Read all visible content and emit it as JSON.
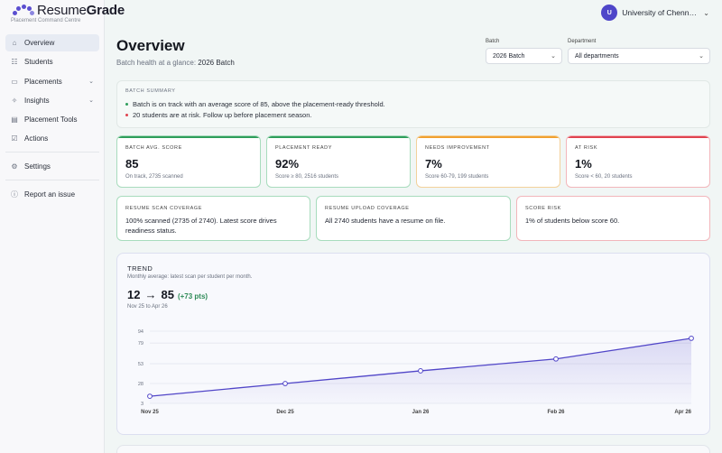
{
  "brand": {
    "name_part1": "Resume",
    "name_part2": "Grade",
    "subtitle": "Placement Command Centre"
  },
  "nav": {
    "items": [
      {
        "label": "Overview",
        "icon": "home-icon",
        "active": true
      },
      {
        "label": "Students",
        "icon": "users-icon"
      },
      {
        "label": "Placements",
        "icon": "briefcase-icon",
        "expandable": true
      },
      {
        "label": "Insights",
        "icon": "bulb-icon",
        "expandable": true
      },
      {
        "label": "Placement Tools",
        "icon": "clipboard-icon"
      },
      {
        "label": "Actions",
        "icon": "checkbox-icon"
      }
    ],
    "settings": "Settings",
    "report": "Report an issue"
  },
  "user": {
    "initial": "U",
    "org": "University of Chennai..."
  },
  "header": {
    "title": "Overview",
    "subtitle_prefix": "Batch health at a glance: ",
    "subtitle_batch": "2026 Batch"
  },
  "filters": {
    "batch_label": "Batch",
    "batch_value": "2026 Batch",
    "dept_label": "Department",
    "dept_value": "All departments"
  },
  "summary": {
    "label": "BATCH SUMMARY",
    "lines": [
      {
        "text": "Batch is on track with an average score of 85, above the placement-ready threshold.",
        "color": "#2e9e5b"
      },
      {
        "text": "20 students are at risk. Follow up before placement season.",
        "color": "#e0434f"
      }
    ]
  },
  "kpis": [
    {
      "title": "BATCH AVG. SCORE",
      "value": "85",
      "sub": "On track, 2735 scanned",
      "accent": "#2e9e5b"
    },
    {
      "title": "PLACEMENT READY",
      "value": "92%",
      "sub": "Score ≥ 80, 2516 students",
      "accent": "#2e9e5b"
    },
    {
      "title": "NEEDS IMPROVEMENT",
      "value": "7%",
      "sub": "Score 60-79, 199 students",
      "accent": "#f0a030"
    },
    {
      "title": "AT RISK",
      "value": "1%",
      "sub": "Score < 60, 20 students",
      "accent": "#e0434f"
    }
  ],
  "coverage": [
    {
      "title": "RESUME SCAN COVERAGE",
      "text": "100% scanned (2735 of 2740). Latest score drives readiness status.",
      "accent": "#9fd8b4"
    },
    {
      "title": "RESUME UPLOAD COVERAGE",
      "text": "All 2740 students have a resume on file.",
      "accent": "#9fd8b4"
    },
    {
      "title": "SCORE RISK",
      "text": "1% of students below score 60.",
      "accent": "#f2b6bb"
    }
  ],
  "trend": {
    "title": "TREND",
    "subtitle": "Monthly average: latest scan per student per month.",
    "from": "12",
    "to": "85",
    "delta": "(+73 pts)",
    "range": "Nov 25 to Apr 26"
  },
  "chart_data": {
    "type": "area",
    "categories": [
      "Nov 25",
      "Dec 25",
      "Jan 26",
      "Feb 26",
      "Apr 26"
    ],
    "values": [
      12,
      28,
      44,
      59,
      85
    ],
    "yticks": [
      94,
      79,
      53,
      28,
      3
    ],
    "ylim": [
      3,
      94
    ],
    "grid": true,
    "color": "#5146c8"
  }
}
